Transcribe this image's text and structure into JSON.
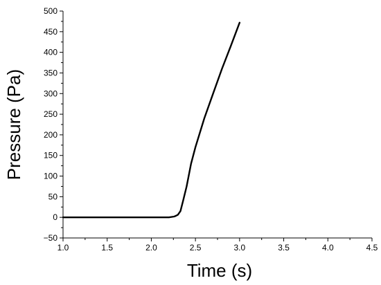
{
  "chart_data": {
    "type": "line",
    "title": "",
    "xlabel": "Time (s)",
    "ylabel": "Pressure (Pa)",
    "xlim": [
      1.0,
      4.5
    ],
    "ylim": [
      -50,
      500
    ],
    "grid": false,
    "legend": "none",
    "x_ticks": [
      "1.0",
      "1.5",
      "2.0",
      "2.5",
      "3.0",
      "3.5",
      "4.0",
      "4.5"
    ],
    "y_ticks": [
      "-50",
      "0",
      "50",
      "100",
      "150",
      "200",
      "250",
      "300",
      "350",
      "400",
      "450",
      "500"
    ],
    "series": [
      {
        "color": "#000000",
        "x": [
          1.0,
          1.5,
          2.0,
          2.2,
          2.26,
          2.3,
          2.33,
          2.36,
          2.4,
          2.45,
          2.5,
          2.6,
          2.7,
          2.8,
          2.9,
          3.0
        ],
        "y": [
          0,
          0,
          0,
          0,
          2,
          6,
          15,
          40,
          75,
          130,
          170,
          240,
          300,
          360,
          415,
          472
        ]
      }
    ]
  }
}
